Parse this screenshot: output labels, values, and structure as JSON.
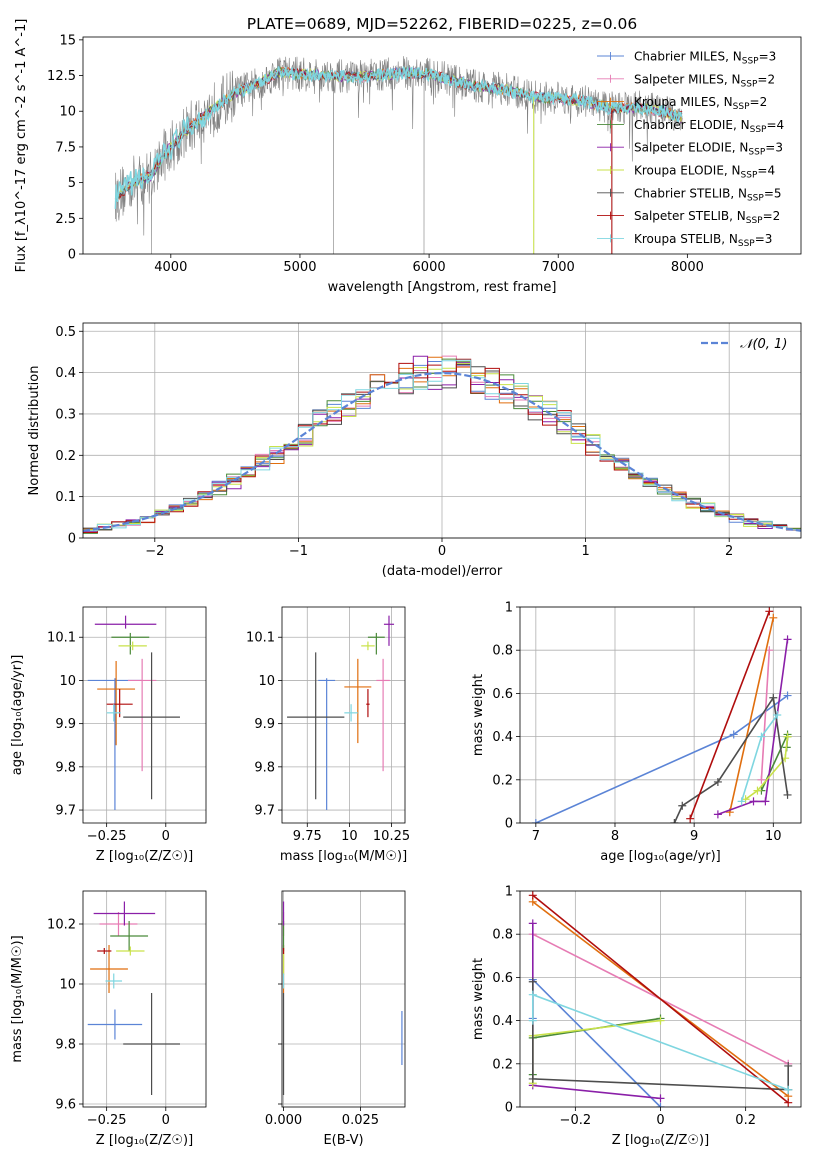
{
  "colors": {
    "Chabrier MILES": "#5b84d6",
    "Salpeter MILES": "#e67cb4",
    "Kroupa MILES": "#e06e0e",
    "Chabrier ELODIE": "#4a8a3a",
    "Salpeter ELODIE": "#8a1fa8",
    "Kroupa ELODIE": "#c9e24a",
    "Chabrier STELIB": "#4d4d4d",
    "Salpeter STELIB": "#b00d0d",
    "Kroupa STELIB": "#7fd6e0"
  },
  "chart_data": [
    {
      "id": "spectrum",
      "type": "line",
      "title": "PLATE=0689, MJD=52262, FIBERID=0225, z=0.06",
      "xlabel": "wavelength [Angstrom, rest frame]",
      "ylabel": "Flux [f_λ10^-17 erg cm^-2 s^-1 A^-1]",
      "xlim": [
        3320,
        8880
      ],
      "ylim": [
        0,
        15.2
      ],
      "xticks": [
        4000,
        5000,
        6000,
        7000,
        8000
      ],
      "yticks": [
        0.0,
        2.5,
        5.0,
        7.5,
        10.0,
        12.5,
        15.0
      ],
      "grid": false,
      "legend_position": "upper right",
      "legend": [
        {
          "label": "Chabrier MILES, N",
          "sub": "SSP",
          "suffix": "=3"
        },
        {
          "label": "Salpeter MILES, N",
          "sub": "SSP",
          "suffix": "=2"
        },
        {
          "label": "Kroupa MILES, N",
          "sub": "SSP",
          "suffix": "=2"
        },
        {
          "label": "Chabrier ELODIE, N",
          "sub": "SSP",
          "suffix": "=4"
        },
        {
          "label": "Salpeter ELODIE, N",
          "sub": "SSP",
          "suffix": "=3"
        },
        {
          "label": "Kroupa ELODIE, N",
          "sub": "SSP",
          "suffix": "=4"
        },
        {
          "label": "Chabrier STELIB, N",
          "sub": "SSP",
          "suffix": "=5"
        },
        {
          "label": "Salpeter STELIB, N",
          "sub": "SSP",
          "suffix": "=2"
        },
        {
          "label": "Kroupa STELIB, N",
          "sub": "SSP",
          "suffix": "=3"
        }
      ],
      "continuum_knots_x": [
        3580,
        3700,
        3850,
        3950,
        4100,
        4300,
        4500,
        4700,
        4850,
        5000,
        5200,
        5400,
        5600,
        5800,
        6000,
        6200,
        6400,
        6600,
        6800,
        7000,
        7200,
        7400,
        7600,
        7800,
        7950
      ],
      "continuum_knots_y": [
        4.0,
        5.0,
        5.5,
        7.0,
        8.5,
        10.0,
        11.3,
        12.0,
        12.8,
        12.6,
        12.5,
        12.4,
        12.5,
        12.7,
        12.6,
        12.1,
        11.7,
        11.5,
        11.0,
        10.9,
        10.7,
        10.2,
        10.3,
        10.0,
        9.6
      ],
      "wavelength_range": [
        3570,
        7960
      ],
      "drop_to_zero_x": [
        3850,
        5260,
        5960,
        6810,
        7415
      ]
    },
    {
      "id": "residuals",
      "type": "histogram",
      "xlabel": "(data-model)/error",
      "ylabel": "Normed distribution",
      "xlim": [
        -2.5,
        2.5
      ],
      "ylim": [
        0,
        0.52
      ],
      "xticks": [
        -2,
        -1,
        0,
        1,
        2
      ],
      "yticks": [
        0.0,
        0.1,
        0.2,
        0.3,
        0.4,
        0.5
      ],
      "grid": true,
      "bin_width": 0.1,
      "legend_position": "upper right",
      "reference_curve": {
        "label": "𝒩(0, 1)",
        "mean": 0,
        "sigma": 1
      }
    },
    {
      "id": "age-vs-Z",
      "type": "errorbar",
      "xlabel": "Z [log₁₀(Z/Z☉)]",
      "ylabel": "age  [log₁₀(age/yr)]",
      "xlim": [
        -0.35,
        0.17
      ],
      "ylim": [
        9.67,
        10.17
      ],
      "xticks": [
        -0.25,
        0.0
      ],
      "yticks": [
        9.7,
        9.8,
        9.9,
        10.0,
        10.1
      ],
      "grid": true,
      "points": [
        {
          "model": "Chabrier MILES",
          "x": -0.215,
          "y": 10.0,
          "xerr": 0.115,
          "yerr": [
            0.3,
            0.005
          ]
        },
        {
          "model": "Salpeter MILES",
          "x": -0.1,
          "y": 10.0,
          "xerr": 0.06,
          "yerr": [
            0.21,
            0.05
          ]
        },
        {
          "model": "Kroupa MILES",
          "x": -0.21,
          "y": 9.98,
          "xerr": 0.08,
          "yerr": [
            0.13,
            0.065
          ]
        },
        {
          "model": "Chabrier ELODIE",
          "x": -0.15,
          "y": 10.1,
          "xerr": 0.08,
          "yerr": [
            0.04,
            0.01
          ]
        },
        {
          "model": "Salpeter ELODIE",
          "x": -0.17,
          "y": 10.13,
          "xerr": 0.13,
          "yerr": [
            0.01,
            0.02
          ]
        },
        {
          "model": "Kroupa ELODIE",
          "x": -0.14,
          "y": 10.08,
          "xerr": 0.06,
          "yerr": [
            0.01,
            0.01
          ]
        },
        {
          "model": "Chabrier STELIB",
          "x": -0.06,
          "y": 9.915,
          "xerr": 0.12,
          "yerr": [
            0.19,
            0.15
          ]
        },
        {
          "model": "Salpeter STELIB",
          "x": -0.195,
          "y": 9.945,
          "xerr": 0.055,
          "yerr": [
            0.03,
            0.035
          ]
        },
        {
          "model": "Kroupa STELIB",
          "x": -0.22,
          "y": 9.925,
          "xerr": 0.03,
          "yerr": [
            0.02,
            0.02
          ]
        }
      ]
    },
    {
      "id": "age-vs-mass",
      "type": "errorbar",
      "xlabel": "mass [log₁₀(M/M☉)]",
      "ylabel": "",
      "xlim": [
        9.6,
        10.33
      ],
      "ylim": [
        9.67,
        10.17
      ],
      "xticks": [
        9.75,
        10.0,
        10.25
      ],
      "yticks": [
        9.7,
        9.8,
        9.9,
        10.0,
        10.1
      ],
      "grid": true,
      "points": [
        {
          "model": "Chabrier MILES",
          "x": 9.865,
          "y": 10.0,
          "xerr": 0.05,
          "yerr": [
            0.3,
            0.005
          ]
        },
        {
          "model": "Salpeter MILES",
          "x": 10.2,
          "y": 10.0,
          "xerr": 0.04,
          "yerr": [
            0.21,
            0.05
          ]
        },
        {
          "model": "Kroupa MILES",
          "x": 10.05,
          "y": 9.985,
          "xerr": 0.08,
          "yerr": [
            0.13,
            0.065
          ]
        },
        {
          "model": "Chabrier ELODIE",
          "x": 10.16,
          "y": 10.1,
          "xerr": 0.05,
          "yerr": [
            0.04,
            0.01
          ]
        },
        {
          "model": "Salpeter ELODIE",
          "x": 10.235,
          "y": 10.13,
          "xerr": 0.03,
          "yerr": [
            0.05,
            0.02
          ]
        },
        {
          "model": "Kroupa ELODIE",
          "x": 10.11,
          "y": 10.08,
          "xerr": 0.04,
          "yerr": [
            0.01,
            0.01
          ]
        },
        {
          "model": "Chabrier STELIB",
          "x": 9.8,
          "y": 9.915,
          "xerr": 0.17,
          "yerr": [
            0.19,
            0.15
          ]
        },
        {
          "model": "Salpeter STELIB",
          "x": 10.11,
          "y": 9.945,
          "xerr": 0.01,
          "yerr": [
            0.03,
            0.035
          ]
        },
        {
          "model": "Kroupa STELIB",
          "x": 10.01,
          "y": 9.925,
          "xerr": 0.04,
          "yerr": [
            0.02,
            0.02
          ]
        }
      ]
    },
    {
      "id": "weight-vs-age",
      "type": "line",
      "xlabel": "age  [log₁₀(age/yr)]",
      "ylabel": "mass weight",
      "xlim": [
        6.8,
        10.35
      ],
      "ylim": [
        0,
        1.0
      ],
      "xticks": [
        7,
        8,
        9,
        10
      ],
      "yticks": [
        0.0,
        0.2,
        0.4,
        0.6,
        0.8,
        1.0
      ],
      "grid": true,
      "series": [
        {
          "model": "Chabrier MILES",
          "x": [
            7.0,
            9.5,
            10.18
          ],
          "y": [
            0.0,
            0.41,
            0.59
          ]
        },
        {
          "model": "Salpeter MILES",
          "x": [
            9.85,
            9.95
          ],
          "y": [
            0.2,
            0.8
          ]
        },
        {
          "model": "Kroupa MILES",
          "x": [
            9.45,
            10.0
          ],
          "y": [
            0.05,
            0.95
          ]
        },
        {
          "model": "Chabrier ELODIE",
          "x": [
            9.85,
            10.18,
            10.17,
            10.18
          ],
          "y": [
            0.15,
            0.41,
            0.35,
            0.4
          ]
        },
        {
          "model": "Salpeter ELODIE",
          "x": [
            9.3,
            9.75,
            9.9,
            10.18
          ],
          "y": [
            0.04,
            0.1,
            0.1,
            0.85
          ]
        },
        {
          "model": "Kroupa ELODIE",
          "x": [
            9.65,
            9.8,
            10.15,
            10.18
          ],
          "y": [
            0.11,
            0.15,
            0.3,
            0.4
          ]
        },
        {
          "model": "Chabrier STELIB",
          "x": [
            8.75,
            8.85,
            9.3,
            10.0,
            10.18
          ],
          "y": [
            0.0,
            0.08,
            0.19,
            0.58,
            0.13
          ]
        },
        {
          "model": "Salpeter STELIB",
          "x": [
            8.95,
            9.95
          ],
          "y": [
            0.02,
            0.98
          ]
        },
        {
          "model": "Kroupa STELIB",
          "x": [
            9.6,
            9.85,
            10.05
          ],
          "y": [
            0.1,
            0.4,
            0.5
          ]
        }
      ]
    },
    {
      "id": "mass-vs-Z",
      "type": "errorbar",
      "xlabel": "Z [log₁₀(Z/Z☉)]",
      "ylabel": "mass [log₁₀(M/M☉)]",
      "xlim": [
        -0.35,
        0.17
      ],
      "ylim": [
        9.59,
        10.31
      ],
      "xticks": [
        -0.25,
        0.0
      ],
      "yticks": [
        9.6,
        9.8,
        10.0,
        10.2
      ],
      "grid": true,
      "points": [
        {
          "model": "Chabrier MILES",
          "x": -0.215,
          "y": 9.865,
          "xerr": 0.115,
          "yerr": 0.05
        },
        {
          "model": "Salpeter MILES",
          "x": -0.2,
          "y": 10.2,
          "xerr": 0.08,
          "yerr": 0.04
        },
        {
          "model": "Kroupa MILES",
          "x": -0.24,
          "y": 10.05,
          "xerr": 0.08,
          "yerr": 0.08
        },
        {
          "model": "Chabrier ELODIE",
          "x": -0.155,
          "y": 10.16,
          "xerr": 0.08,
          "yerr": 0.05
        },
        {
          "model": "Salpeter ELODIE",
          "x": -0.175,
          "y": 10.235,
          "xerr": 0.13,
          "yerr": 0.04
        },
        {
          "model": "Kroupa ELODIE",
          "x": -0.15,
          "y": 10.11,
          "xerr": 0.06,
          "yerr": 0.015
        },
        {
          "model": "Chabrier STELIB",
          "x": -0.06,
          "y": 9.8,
          "xerr": 0.12,
          "yerr": 0.17
        },
        {
          "model": "Salpeter STELIB",
          "x": -0.26,
          "y": 10.11,
          "xerr": 0.03,
          "yerr": 0.01
        },
        {
          "model": "Kroupa STELIB",
          "x": -0.22,
          "y": 10.01,
          "xerr": 0.035,
          "yerr": 0.025
        }
      ]
    },
    {
      "id": "mass-vs-EBV",
      "type": "errorbar",
      "xlabel": "E(B-V)",
      "ylabel": "",
      "xlim": [
        -0.0005,
        0.0395
      ],
      "ylim": [
        9.59,
        10.31
      ],
      "xticks": [
        0.0,
        0.025
      ],
      "xtick_labels": [
        "0.000",
        "0.025"
      ],
      "yticks": [
        9.8,
        10.0,
        10.2,
        9.6
      ],
      "grid": true,
      "points": [
        {
          "model": "Chabrier MILES",
          "x": 0.0385,
          "y": 9.82,
          "yerr": 0.09
        },
        {
          "model": "Salpeter MILES",
          "x": 0.0,
          "y": 10.2,
          "yerr": 0.04
        },
        {
          "model": "Kroupa MILES",
          "x": 0.0,
          "y": 10.05,
          "yerr": 0.08
        },
        {
          "model": "Chabrier ELODIE",
          "x": 0.0,
          "y": 10.16,
          "yerr": 0.05
        },
        {
          "model": "Salpeter ELODIE",
          "x": 0.0,
          "y": 10.235,
          "yerr": 0.04
        },
        {
          "model": "Kroupa ELODIE",
          "x": 0.0,
          "y": 10.07,
          "yerr": 0.04
        },
        {
          "model": "Chabrier STELIB",
          "x": 0.0,
          "y": 9.8,
          "yerr": 0.17
        },
        {
          "model": "Salpeter STELIB",
          "x": 0.0,
          "y": 10.11,
          "yerr": 0.01
        },
        {
          "model": "Kroupa STELIB",
          "x": 0.0,
          "y": 10.01,
          "yerr": 0.025
        }
      ]
    },
    {
      "id": "weight-vs-Z",
      "type": "line",
      "xlabel": "Z [log₁₀(Z/Z☉)]",
      "ylabel": "mass weight",
      "xlim": [
        -0.33,
        0.33
      ],
      "ylim": [
        0,
        1.0
      ],
      "xticks": [
        -0.2,
        0.0,
        0.2
      ],
      "yticks": [
        0.0,
        0.2,
        0.4,
        0.6,
        0.8,
        1.0
      ],
      "grid": true,
      "series": [
        {
          "model": "Chabrier MILES",
          "x": [
            -0.3,
            -0.3,
            0.0
          ],
          "y": [
            0.41,
            0.59,
            0.0
          ]
        },
        {
          "model": "Salpeter MILES",
          "x": [
            -0.3,
            0.3
          ],
          "y": [
            0.8,
            0.2
          ]
        },
        {
          "model": "Kroupa MILES",
          "x": [
            -0.3,
            0.3
          ],
          "y": [
            0.95,
            0.05
          ]
        },
        {
          "model": "Chabrier ELODIE",
          "x": [
            -0.3,
            -0.3,
            0.0
          ],
          "y": [
            0.15,
            0.32,
            0.41
          ]
        },
        {
          "model": "Salpeter ELODIE",
          "x": [
            -0.3,
            -0.3,
            0.0
          ],
          "y": [
            0.85,
            0.1,
            0.04
          ]
        },
        {
          "model": "Kroupa ELODIE",
          "x": [
            -0.3,
            -0.3,
            0.0
          ],
          "y": [
            0.11,
            0.33,
            0.4
          ]
        },
        {
          "model": "Chabrier STELIB",
          "x": [
            -0.3,
            -0.3,
            0.3,
            0.3
          ],
          "y": [
            0.58,
            0.13,
            0.08,
            0.19
          ]
        },
        {
          "model": "Salpeter STELIB",
          "x": [
            -0.3,
            0.3
          ],
          "y": [
            0.98,
            0.02
          ]
        },
        {
          "model": "Kroupa STELIB",
          "x": [
            -0.3,
            -0.3,
            0.3
          ],
          "y": [
            0.4,
            0.52,
            0.08
          ]
        }
      ]
    }
  ]
}
